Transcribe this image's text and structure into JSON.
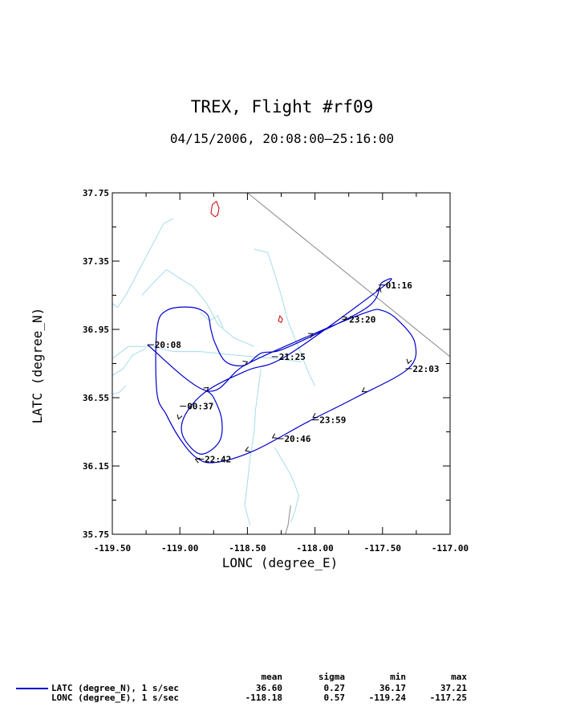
{
  "chart_data": {
    "type": "line",
    "title": "TREX, Flight #rf09",
    "subtitle": "04/15/2006, 20:08:00–25:16:00",
    "xlabel": "LONC (degree_E)",
    "ylabel": "LATC (degree_N)",
    "xlim": [
      -119.5,
      -117.0
    ],
    "ylim": [
      35.75,
      37.75
    ],
    "x_ticks": [
      "-119.50",
      "-119.00",
      "-118.50",
      "-118.00",
      "-117.50",
      "-117.00"
    ],
    "y_ticks": [
      "35.75",
      "36.15",
      "36.55",
      "36.95",
      "37.35",
      "37.75"
    ],
    "grid": false,
    "series_color": "#0000cc",
    "series": [
      {
        "name": "LATC (degree_N), 1 s/sec",
        "points": [
          [
            -119.24,
            36.86
          ],
          [
            -118.8,
            36.59
          ],
          [
            -118.52,
            36.74
          ],
          [
            -118.05,
            36.91
          ],
          [
            -117.62,
            37.05
          ],
          [
            -117.5,
            37.06
          ],
          [
            -117.38,
            37.0
          ],
          [
            -117.26,
            36.87
          ],
          [
            -117.31,
            36.72
          ],
          [
            -117.7,
            36.55
          ],
          [
            -118.05,
            36.41
          ],
          [
            -118.45,
            36.24
          ],
          [
            -118.74,
            36.17
          ],
          [
            -118.88,
            36.2
          ],
          [
            -119.0,
            36.31
          ],
          [
            -119.1,
            36.45
          ],
          [
            -119.17,
            36.58
          ],
          [
            -119.17,
            36.95
          ],
          [
            -119.1,
            37.06
          ],
          [
            -118.92,
            37.08
          ],
          [
            -118.8,
            37.04
          ],
          [
            -118.77,
            36.95
          ],
          [
            -118.74,
            36.87
          ],
          [
            -118.66,
            36.76
          ],
          [
            -118.52,
            36.74
          ],
          [
            -118.4,
            36.81
          ],
          [
            -118.25,
            36.83
          ],
          [
            -117.92,
            36.95
          ],
          [
            -117.65,
            37.06
          ],
          [
            -117.55,
            37.13
          ],
          [
            -117.51,
            37.22
          ],
          [
            -117.48,
            37.21
          ],
          [
            -118.2,
            36.8
          ],
          [
            -118.5,
            36.71
          ],
          [
            -118.8,
            36.59
          ],
          [
            -118.96,
            36.45
          ],
          [
            -118.98,
            36.33
          ],
          [
            -118.85,
            36.22
          ],
          [
            -118.71,
            36.29
          ],
          [
            -118.69,
            36.42
          ],
          [
            -118.75,
            36.55
          ],
          [
            -118.8,
            36.59
          ]
        ]
      }
    ],
    "annotations": [
      {
        "label": "20:08",
        "x": -119.24,
        "y": 36.86
      },
      {
        "label": "21:25",
        "x": -118.32,
        "y": 36.79
      },
      {
        "label": "23:20",
        "x": -117.8,
        "y": 37.01
      },
      {
        "label": "01:16",
        "x": -117.53,
        "y": 37.21
      },
      {
        "label": "22:03",
        "x": -117.33,
        "y": 36.72
      },
      {
        "label": "23:59",
        "x": -118.02,
        "y": 36.42
      },
      {
        "label": "20:46",
        "x": -118.28,
        "y": 36.31
      },
      {
        "label": "22:42",
        "x": -118.87,
        "y": 36.19
      },
      {
        "label": "00:37",
        "x": -119.0,
        "y": 36.5
      }
    ],
    "direction_arrows": [
      [
        -118.82,
        36.59,
        -118.76,
        36.63
      ],
      [
        -118.53,
        36.75,
        -118.47,
        36.77
      ],
      [
        -118.05,
        36.91,
        -117.98,
        36.94
      ],
      [
        -117.8,
        37.01,
        -117.73,
        37.03
      ],
      [
        -117.3,
        36.78,
        -117.32,
        36.72
      ],
      [
        -117.62,
        36.6,
        -117.68,
        36.57
      ],
      [
        -117.98,
        36.45,
        -118.05,
        36.42
      ],
      [
        -118.28,
        36.33,
        -118.35,
        36.3
      ],
      [
        -118.48,
        36.25,
        -118.55,
        36.23
      ],
      [
        -118.85,
        36.18,
        -118.92,
        36.2
      ],
      [
        -119.0,
        36.45,
        -119.02,
        36.4
      ],
      [
        -117.53,
        37.17,
        -117.51,
        37.22
      ]
    ],
    "background_lines": {
      "rivers_color": "#a6dcea",
      "rivers": [
        [
          [
            -119.5,
            36.78
          ],
          [
            -119.38,
            36.85
          ],
          [
            -119.2,
            36.85
          ],
          [
            -119.05,
            36.82
          ],
          [
            -118.85,
            36.82
          ],
          [
            -118.6,
            36.8
          ],
          [
            -118.3,
            36.78
          ],
          [
            -118.1,
            36.76
          ]
        ],
        [
          [
            -119.5,
            36.68
          ],
          [
            -119.42,
            36.72
          ],
          [
            -119.35,
            36.8
          ],
          [
            -119.25,
            36.84
          ]
        ],
        [
          [
            -119.5,
            37.1
          ],
          [
            -119.46,
            37.08
          ],
          [
            -119.4,
            37.15
          ],
          [
            -119.3,
            37.3
          ],
          [
            -119.2,
            37.45
          ],
          [
            -119.12,
            37.57
          ],
          [
            -119.05,
            37.6
          ]
        ],
        [
          [
            -119.28,
            37.15
          ],
          [
            -119.2,
            37.22
          ],
          [
            -119.1,
            37.3
          ],
          [
            -119.0,
            37.25
          ],
          [
            -118.9,
            37.2
          ],
          [
            -118.8,
            37.1
          ],
          [
            -118.72,
            36.98
          ],
          [
            -118.6,
            36.9
          ],
          [
            -118.45,
            36.85
          ]
        ],
        [
          [
            -118.85,
            37.05
          ],
          [
            -118.78,
            37.0
          ],
          [
            -118.72,
            37.03
          ],
          [
            -118.68,
            36.96
          ]
        ],
        [
          [
            -118.45,
            37.42
          ],
          [
            -118.35,
            37.4
          ],
          [
            -118.3,
            37.28
          ],
          [
            -118.25,
            37.15
          ],
          [
            -118.2,
            37.0
          ],
          [
            -118.15,
            36.9
          ],
          [
            -118.1,
            36.8
          ],
          [
            -118.05,
            36.7
          ],
          [
            -118.0,
            36.62
          ]
        ],
        [
          [
            -118.4,
            36.72
          ],
          [
            -118.42,
            36.6
          ],
          [
            -118.44,
            36.48
          ],
          [
            -118.45,
            36.35
          ],
          [
            -118.48,
            36.2
          ],
          [
            -118.5,
            36.05
          ],
          [
            -118.52,
            35.92
          ],
          [
            -118.48,
            35.8
          ]
        ],
        [
          [
            -118.3,
            36.26
          ],
          [
            -118.18,
            36.1
          ],
          [
            -118.12,
            35.98
          ],
          [
            -118.15,
            35.88
          ],
          [
            -118.18,
            35.82
          ]
        ],
        [
          [
            -119.5,
            36.57
          ],
          [
            -119.45,
            36.58
          ],
          [
            -119.4,
            36.62
          ]
        ]
      ],
      "boundary_color": "#888888",
      "boundaries": [
        [
          [
            -118.5,
            37.75
          ],
          [
            -118.0,
            37.43
          ],
          [
            -117.5,
            37.11
          ],
          [
            -117.0,
            36.79
          ]
        ],
        [
          [
            -118.18,
            35.92
          ],
          [
            -118.2,
            35.8
          ],
          [
            -118.22,
            35.75
          ]
        ]
      ],
      "lakes_color": "#cc0000",
      "lakes": [
        [
          [
            -118.73,
            37.7
          ],
          [
            -118.71,
            37.66
          ],
          [
            -118.72,
            37.62
          ],
          [
            -118.74,
            37.61
          ],
          [
            -118.77,
            37.63
          ],
          [
            -118.76,
            37.68
          ],
          [
            -118.73,
            37.7
          ]
        ],
        [
          [
            -118.26,
            37.03
          ],
          [
            -118.24,
            37.01
          ],
          [
            -118.25,
            36.99
          ],
          [
            -118.27,
            37.0
          ],
          [
            -118.26,
            37.03
          ]
        ]
      ]
    }
  },
  "legend": {
    "entries": [
      {
        "label": "LATC (degree_N), 1 s/sec",
        "mean": "36.60",
        "sigma": "0.27",
        "min": "36.17",
        "max": "37.21"
      },
      {
        "label": "LONC (degree_E), 1 s/sec",
        "mean": "-118.18",
        "sigma": "0.57",
        "min": "-119.24",
        "max": "-117.25"
      }
    ],
    "headers": {
      "mean": "mean",
      "sigma": "sigma",
      "min": "min",
      "max": "max"
    }
  }
}
